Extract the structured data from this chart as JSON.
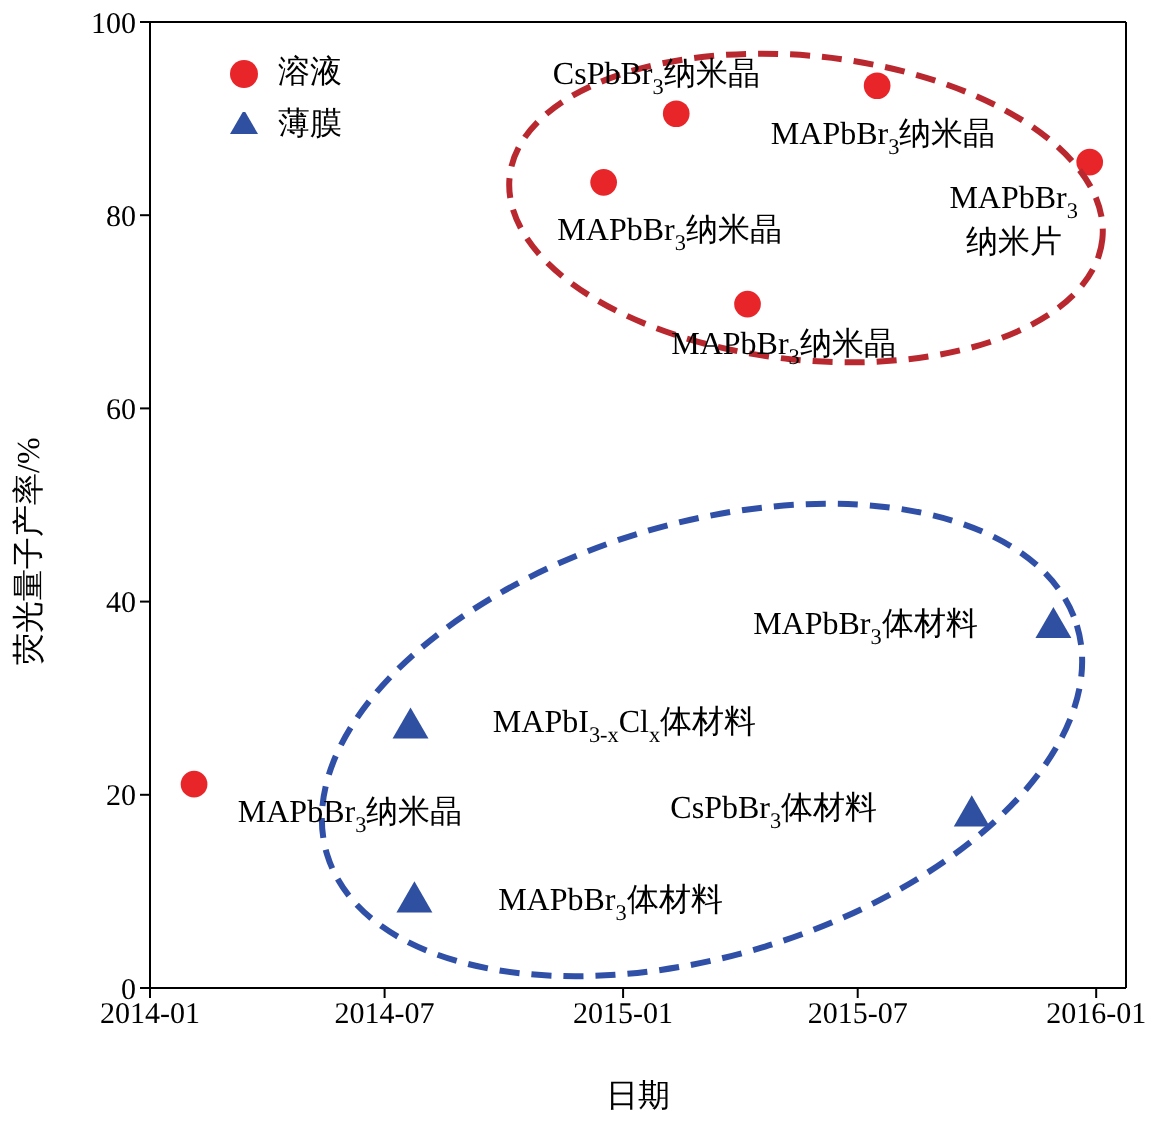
{
  "chart_data": {
    "type": "scatter",
    "xlabel": "日期",
    "ylabel": "荧光量子产率/%",
    "xlim": [
      "2014-01",
      "2016-01-24"
    ],
    "xticks": [
      "2014-01",
      "2014-07",
      "2015-01",
      "2015-07",
      "2016-01"
    ],
    "ylim": [
      0,
      100
    ],
    "yticks": [
      0,
      20,
      40,
      60,
      80,
      100
    ],
    "grid": false,
    "legend": "top left",
    "series": [
      {
        "name": "溶液",
        "color": "#e8262a",
        "marker": "circle",
        "x": [
          "2014-02-04",
          "2014-12-17",
          "2015-02-11",
          "2015-04-07",
          "2015-07-16",
          "2015-12-27"
        ],
        "values": [
          21.1,
          83.4,
          90.5,
          70.8,
          93.4,
          85.5
        ]
      },
      {
        "name": "薄膜",
        "color": "#2f4fa0",
        "marker": "triangle",
        "x": [
          "2014-07-21",
          "2014-07-24",
          "2015-09-27",
          "2015-11-29"
        ],
        "values": [
          26.9,
          8.9,
          17.8,
          37.3
        ]
      }
    ],
    "annotations": [
      {
        "text": "MAPbBr$_{3}$纳米晶",
        "x": "2014-02-04",
        "y": 21.1
      },
      {
        "text": "MAPbBr$_{3}$纳米晶",
        "x": "2014-12-17",
        "y": 83.4
      },
      {
        "text": "CsPbBr$_{3}$纳米晶",
        "x": "2015-02-11",
        "y": 90.5
      },
      {
        "text": "MAPbBr$_{3}$纳米晶",
        "x": "2015-04-07",
        "y": 70.8
      },
      {
        "text": "MAPbBr$_{3}$纳米晶",
        "x": "2015-07-16",
        "y": 93.4
      },
      {
        "text": "MAPbBr$_{3}$\n纳米片",
        "x": "2015-12-27",
        "y": 85.5
      },
      {
        "text": "MAPbI$_{3-x}$Cl$_{x}$体材料",
        "x": "2014-07-21",
        "y": 26.9
      },
      {
        "text": "MAPbBr$_{3}$体材料",
        "x": "2014-07-24",
        "y": 8.9
      },
      {
        "text": "CsPbBr$_{3}$体材料",
        "x": "2015-09-27",
        "y": 17.8
      },
      {
        "text": "MAPbBr$_{3}$体材料",
        "x": "2015-11-29",
        "y": 37.3
      }
    ]
  }
}
